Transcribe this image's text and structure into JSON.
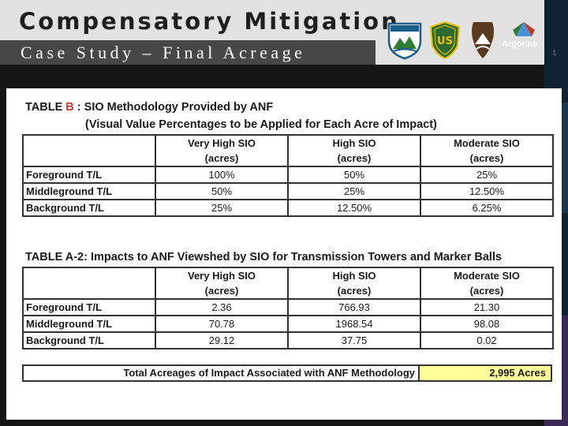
{
  "slide": {
    "title": "Compensatory Mitigation",
    "subtitle": "Case Study – Final Acreage",
    "page_number": "1",
    "logo_text": "Argonne"
  },
  "table_b": {
    "title_prefix": "TABLE ",
    "title_letter": "B",
    "title_rest": " : SIO Methodology Provided by ANF",
    "subtitle": "(Visual Value Percentages to be Applied for Each Acre of Impact)",
    "headers": [
      "Very High SIO",
      "High SIO",
      "Moderate SIO"
    ],
    "unit": "(acres)",
    "rows": [
      {
        "label": "Foreground T/L",
        "values": [
          "100%",
          "50%",
          "25%"
        ]
      },
      {
        "label": "Middleground T/L",
        "values": [
          "50%",
          "25%",
          "12.50%"
        ]
      },
      {
        "label": "Background T/L",
        "values": [
          "25%",
          "12.50%",
          "6.25%"
        ]
      }
    ]
  },
  "table_a2": {
    "title": "TABLE A-2: Impacts to ANF Viewshed by SIO for Transmission Towers and Marker Balls",
    "headers": [
      "Very High SIO",
      "High SIO",
      "Moderate SIO"
    ],
    "unit": "(acres)",
    "rows": [
      {
        "label": "Foreground T/L",
        "values": [
          "2.36",
          "766.93",
          "21.30"
        ]
      },
      {
        "label": "Middleground T/L",
        "values": [
          "70.78",
          "1968.54",
          "98.08"
        ]
      },
      {
        "label": "Background T/L",
        "values": [
          "29.12",
          "37.75",
          "0.02"
        ]
      }
    ]
  },
  "total": {
    "label": "Total Acreages of Impact Associated with ANF Methodology",
    "value": "2,995 Acres",
    "highlight_color": "#ffff99"
  }
}
